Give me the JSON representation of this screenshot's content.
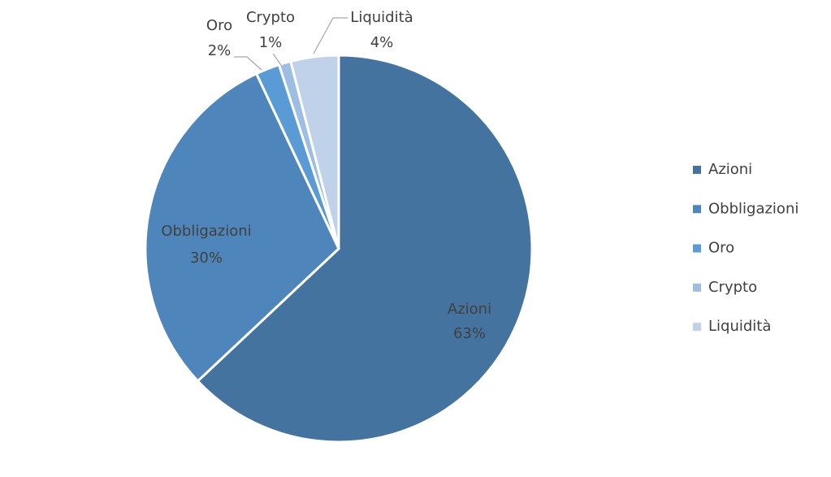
{
  "chart_data": {
    "type": "pie",
    "categories": [
      "Azioni",
      "Obbligazioni",
      "Oro",
      "Crypto",
      "Liquidità"
    ],
    "values": [
      63,
      30,
      2,
      1,
      4
    ],
    "value_labels": [
      "63%",
      "30%",
      "2%",
      "1%",
      "4%"
    ],
    "colors": [
      "#44739f",
      "#4e86bb",
      "#5b9bd5",
      "#9dbde3",
      "#c0d2ea"
    ],
    "legend": "right"
  }
}
